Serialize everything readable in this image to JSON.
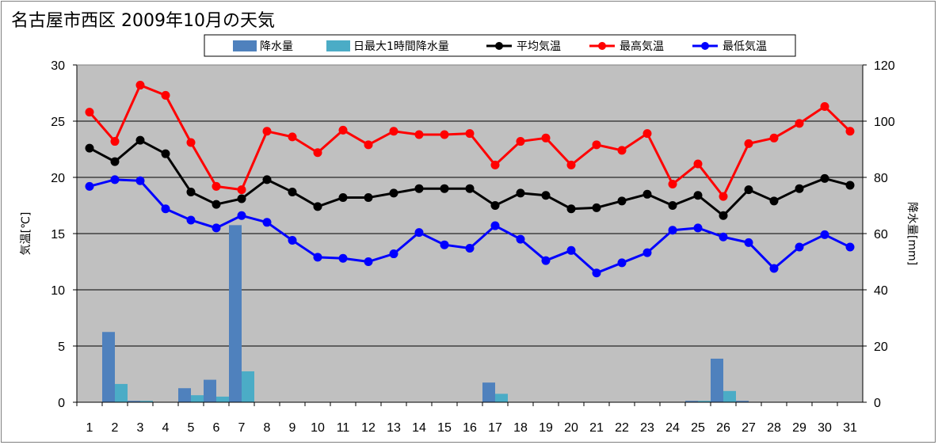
{
  "colors": {
    "plot_bg": "#c0c0c0",
    "rain": "#4f81bd",
    "rain_max_hourly": "#4bacc6",
    "avg": "#000000",
    "max": "#ff0000",
    "min": "#0000ff"
  },
  "chart_data": {
    "type": "bar+line",
    "title": "名古屋市西区  2009年10月の天気",
    "ylabel": "気温[℃]",
    "y2label": "降水量[mm]",
    "ylim": [
      0,
      30
    ],
    "y2lim": [
      0,
      120
    ],
    "yticks": [
      0,
      5,
      10,
      15,
      20,
      25,
      30
    ],
    "y2ticks": [
      0,
      20,
      40,
      60,
      80,
      100,
      120
    ],
    "grid": true,
    "legend_position": "top",
    "categories": [
      "1",
      "2",
      "3",
      "4",
      "5",
      "6",
      "7",
      "8",
      "9",
      "10",
      "11",
      "12",
      "13",
      "14",
      "15",
      "16",
      "17",
      "18",
      "19",
      "20",
      "21",
      "22",
      "23",
      "24",
      "25",
      "26",
      "27",
      "28",
      "29",
      "30",
      "31"
    ],
    "bar_series": [
      {
        "name": "降水量",
        "axis": "right",
        "values": [
          0,
          25,
          0.5,
          0,
          5,
          8,
          63,
          0,
          0,
          0,
          0,
          0,
          0,
          0,
          0,
          0,
          7,
          0,
          0,
          0,
          0,
          0,
          0,
          0,
          0.5,
          15.5,
          0.5,
          0,
          0,
          0,
          0
        ]
      },
      {
        "name": "日最大1時間降水量",
        "axis": "right",
        "values": [
          0,
          6.5,
          0.5,
          0,
          2.5,
          2,
          11,
          0,
          0,
          0,
          0,
          0,
          0,
          0,
          0,
          0,
          3,
          0,
          0,
          0,
          0,
          0,
          0,
          0,
          0.5,
          4,
          0,
          0,
          0,
          0,
          0
        ]
      }
    ],
    "line_series": [
      {
        "name": "平均気温",
        "axis": "left",
        "values": [
          22.6,
          21.4,
          23.3,
          22.1,
          18.7,
          17.6,
          18.1,
          19.8,
          18.7,
          17.4,
          18.2,
          18.2,
          18.6,
          19.0,
          19.0,
          19.0,
          17.5,
          18.6,
          18.4,
          17.2,
          17.3,
          17.9,
          18.5,
          17.5,
          18.4,
          16.6,
          18.9,
          17.9,
          19.0,
          19.9,
          19.3
        ]
      },
      {
        "name": "最高気温",
        "axis": "left",
        "values": [
          25.8,
          23.2,
          28.2,
          27.3,
          23.1,
          19.2,
          18.9,
          24.1,
          23.6,
          22.2,
          24.2,
          22.9,
          24.1,
          23.8,
          23.8,
          23.9,
          21.1,
          23.2,
          23.5,
          21.1,
          22.9,
          22.4,
          23.9,
          19.4,
          21.2,
          18.3,
          23.0,
          23.5,
          24.8,
          26.3,
          24.1
        ]
      },
      {
        "name": "最低気温",
        "axis": "left",
        "values": [
          19.2,
          19.8,
          19.7,
          17.2,
          16.2,
          15.5,
          16.6,
          16.0,
          14.4,
          12.9,
          12.8,
          12.5,
          13.2,
          15.1,
          14.0,
          13.7,
          15.7,
          14.5,
          12.6,
          13.5,
          11.5,
          12.4,
          13.3,
          15.3,
          15.5,
          14.7,
          14.2,
          11.9,
          13.8,
          14.9,
          13.8
        ]
      }
    ]
  }
}
